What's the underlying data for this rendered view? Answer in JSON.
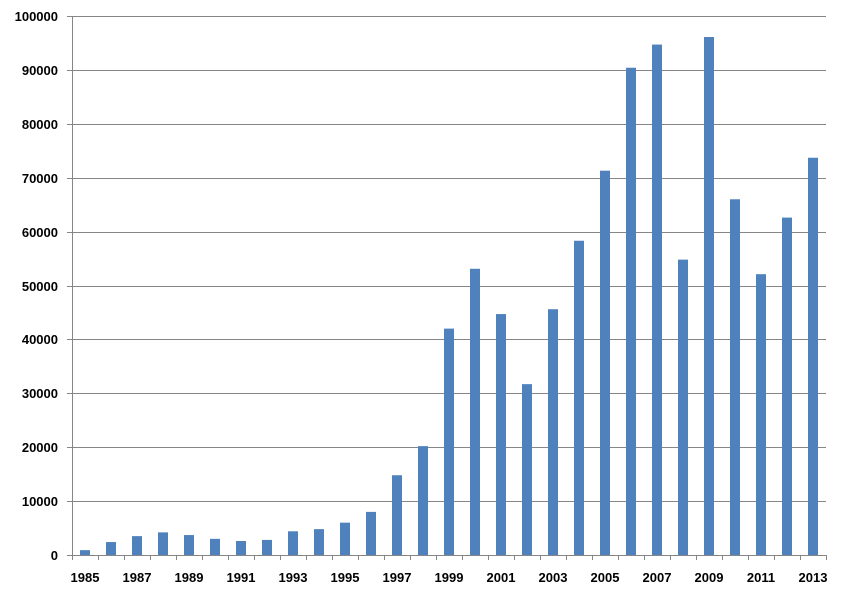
{
  "colors": {
    "bar": "#4f81bd",
    "grid": "#868686",
    "background": "#ffffff"
  },
  "chart_data": {
    "type": "bar",
    "title": "",
    "xlabel": "",
    "ylabel": "",
    "ylim": [
      0,
      100000
    ],
    "yticks": [
      "0",
      "10000",
      "20000",
      "30000",
      "40000",
      "50000",
      "60000",
      "70000",
      "80000",
      "90000",
      "100000"
    ],
    "categories": [
      "1985",
      "1986",
      "1987",
      "1988",
      "1989",
      "1990",
      "1991",
      "1992",
      "1993",
      "1994",
      "1995",
      "1996",
      "1997",
      "1998",
      "1999",
      "2000",
      "2001",
      "2002",
      "2003",
      "2004",
      "2005",
      "2006",
      "2007",
      "2008",
      "2009",
      "2010",
      "2011",
      "2012",
      "2013"
    ],
    "xtick_labels": [
      "1985",
      "",
      "1987",
      "",
      "1989",
      "",
      "1991",
      "",
      "1993",
      "",
      "1995",
      "",
      "1997",
      "",
      "1999",
      "",
      "2001",
      "",
      "2003",
      "",
      "2005",
      "",
      "2007",
      "",
      "2009",
      "",
      "2011",
      "",
      "2013"
    ],
    "values": [
      900,
      2400,
      3500,
      4200,
      3700,
      3000,
      2600,
      2800,
      4400,
      4800,
      6000,
      8000,
      14800,
      20200,
      42000,
      53100,
      44700,
      31700,
      45600,
      58300,
      71300,
      90400,
      94700,
      54800,
      96100,
      66000,
      52100,
      62600,
      73700
    ],
    "grid": true,
    "legend": "none"
  }
}
